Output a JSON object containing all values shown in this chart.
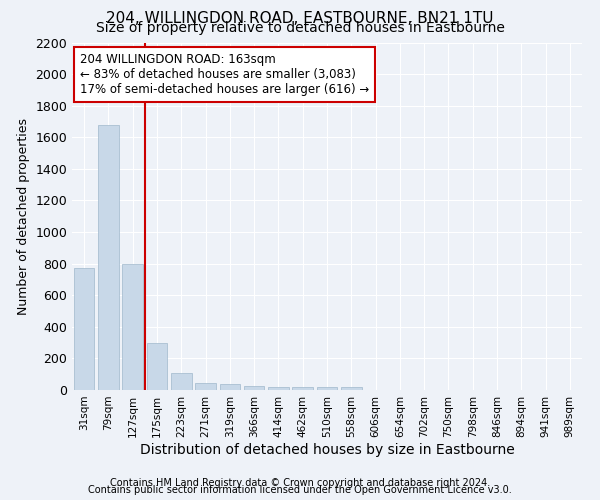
{
  "title": "204, WILLINGDON ROAD, EASTBOURNE, BN21 1TU",
  "subtitle": "Size of property relative to detached houses in Eastbourne",
  "xlabel": "Distribution of detached houses by size in Eastbourne",
  "ylabel": "Number of detached properties",
  "footer_line1": "Contains HM Land Registry data © Crown copyright and database right 2024.",
  "footer_line2": "Contains public sector information licensed under the Open Government Licence v3.0.",
  "bar_categories": [
    "31sqm",
    "79sqm",
    "127sqm",
    "175sqm",
    "223sqm",
    "271sqm",
    "319sqm",
    "366sqm",
    "414sqm",
    "462sqm",
    "510sqm",
    "558sqm",
    "606sqm",
    "654sqm",
    "702sqm",
    "750sqm",
    "798sqm",
    "846sqm",
    "894sqm",
    "941sqm",
    "989sqm"
  ],
  "bar_values": [
    770,
    1680,
    795,
    300,
    110,
    45,
    35,
    28,
    22,
    20,
    20,
    20,
    0,
    0,
    0,
    0,
    0,
    0,
    0,
    0,
    0
  ],
  "bar_color": "#c8d8e8",
  "bar_edgecolor": "#a0b8cc",
  "vline_x": 2.5,
  "vline_color": "#cc0000",
  "annotation_text": "204 WILLINGDON ROAD: 163sqm\n← 83% of detached houses are smaller (3,083)\n17% of semi-detached houses are larger (616) →",
  "annotation_box_facecolor": "#ffffff",
  "annotation_box_edgecolor": "#cc0000",
  "ylim": [
    0,
    2200
  ],
  "yticks": [
    0,
    200,
    400,
    600,
    800,
    1000,
    1200,
    1400,
    1600,
    1800,
    2000,
    2200
  ],
  "background_color": "#eef2f8",
  "plot_background_color": "#eef2f8",
  "grid_color": "#ffffff",
  "title_fontsize": 11,
  "subtitle_fontsize": 10,
  "xlabel_fontsize": 10,
  "ylabel_fontsize": 9,
  "footer_fontsize": 7
}
